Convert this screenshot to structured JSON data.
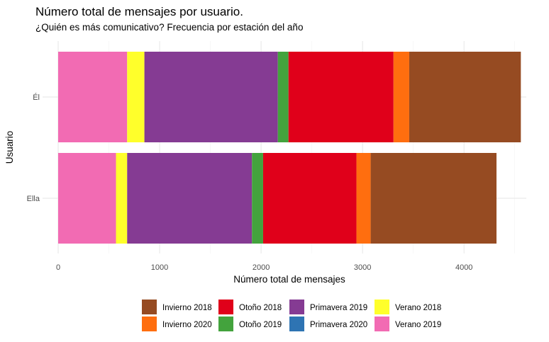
{
  "chart_data": {
    "type": "bar",
    "orientation": "horizontal",
    "stacked": true,
    "title": "Número total de mensajes por usuario.",
    "subtitle": "¿Quién es más comunicativo? Frecuencia por estación del año",
    "xlabel": "Número total de mensajes",
    "ylabel": "Usuario",
    "xlim": [
      0,
      4560
    ],
    "xticks": [
      0,
      1000,
      2000,
      3000,
      4000
    ],
    "grid": true,
    "legend_position": "bottom",
    "categories": [
      "Él",
      "Ella"
    ],
    "stack_order": [
      "Verano 2019",
      "Verano 2018",
      "Primavera 2019",
      "Otoño 2019",
      "Otoño 2018",
      "Invierno 2020",
      "Invierno 2018"
    ],
    "series": [
      {
        "name": "Invierno 2018",
        "color": "#964B22",
        "values": [
          1100,
          1240
        ]
      },
      {
        "name": "Invierno 2020",
        "color": "#FF6E0F",
        "values": [
          155,
          140
        ]
      },
      {
        "name": "Otoño 2018",
        "color": "#E0001A",
        "values": [
          1035,
          920
        ]
      },
      {
        "name": "Otoño 2019",
        "color": "#43A33D",
        "values": [
          105,
          110
        ]
      },
      {
        "name": "Primavera 2019",
        "color": "#853B93",
        "values": [
          1315,
          1230
        ]
      },
      {
        "name": "Primavera 2020",
        "color": "#2E74B3",
        "values": [
          0,
          0
        ]
      },
      {
        "name": "Verano 2018",
        "color": "#FFFF2B",
        "values": [
          170,
          110
        ]
      },
      {
        "name": "Verano 2019",
        "color": "#F26BB3",
        "values": [
          680,
          570
        ]
      }
    ]
  }
}
